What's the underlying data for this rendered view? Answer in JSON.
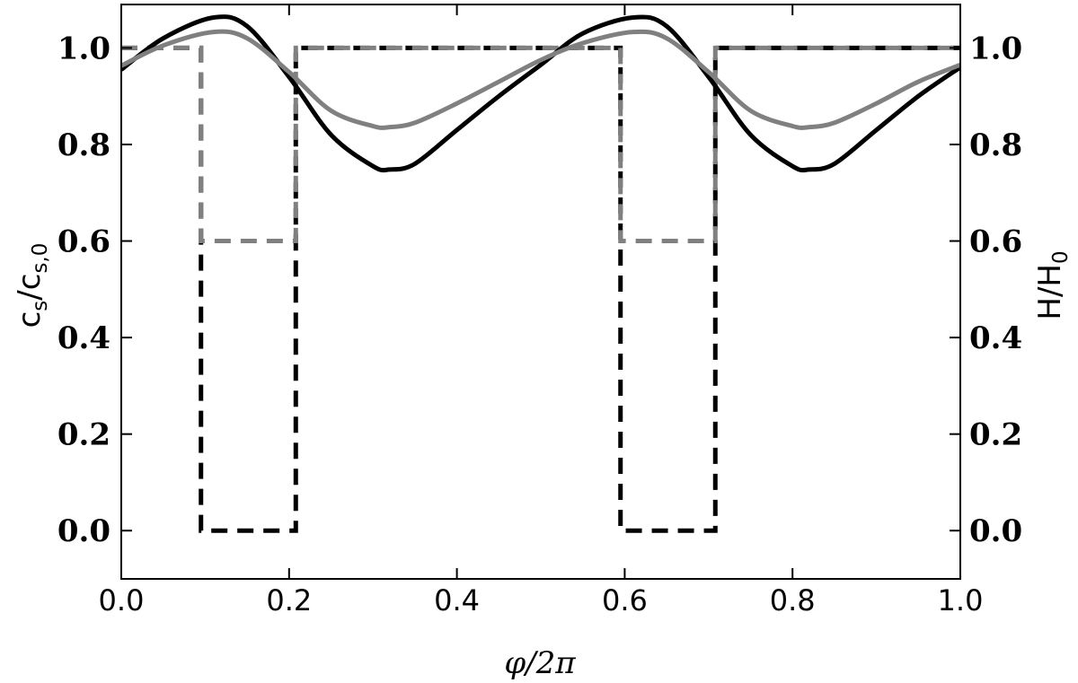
{
  "chart_data": {
    "type": "line",
    "xlabel": "φ/2π",
    "ylabel_left": {
      "base": "c",
      "sub": "s",
      "sep": "/",
      "base2": "c",
      "sub2": "s,0"
    },
    "ylabel_right": {
      "base": "H",
      "sep": "/",
      "base2": "H",
      "sub2": "0"
    },
    "xlim": [
      0.0,
      1.0
    ],
    "ylim": [
      -0.1,
      1.09
    ],
    "x_ticks": [
      0.0,
      0.2,
      0.4,
      0.6,
      0.8,
      1.0
    ],
    "x_tick_labels": [
      "0.0",
      "0.2",
      "0.4",
      "0.6",
      "0.8",
      "1.0"
    ],
    "y_ticks": [
      0.0,
      0.2,
      0.4,
      0.6,
      0.8,
      1.0
    ],
    "y_tick_labels_left": [
      "0.0",
      "0.2",
      "0.4",
      "0.6",
      "0.8",
      "1.0"
    ],
    "y_tick_labels_right": [
      "0.0",
      "0.2",
      "0.4",
      "0.6",
      "0.8",
      "1.0"
    ],
    "grid": false,
    "series": [
      {
        "style": "solid",
        "color": "#000000",
        "axis": "left",
        "x": [
          0.0,
          0.05,
          0.11,
          0.15,
          0.2,
          0.25,
          0.3,
          0.32,
          0.35,
          0.4,
          0.45,
          0.5,
          0.55,
          0.61,
          0.65,
          0.7,
          0.75,
          0.8,
          0.82,
          0.85,
          0.9,
          0.95,
          1.0
        ],
        "y": [
          0.955,
          1.02,
          1.063,
          1.045,
          0.94,
          0.82,
          0.755,
          0.748,
          0.76,
          0.83,
          0.9,
          0.965,
          1.03,
          1.063,
          1.045,
          0.94,
          0.82,
          0.755,
          0.748,
          0.76,
          0.83,
          0.9,
          0.96
        ]
      },
      {
        "style": "solid",
        "color": "#808080",
        "axis": "left",
        "x": [
          0.0,
          0.05,
          0.11,
          0.15,
          0.2,
          0.25,
          0.3,
          0.32,
          0.35,
          0.4,
          0.45,
          0.5,
          0.55,
          0.61,
          0.65,
          0.7,
          0.75,
          0.8,
          0.82,
          0.85,
          0.9,
          0.95,
          1.0
        ],
        "y": [
          0.963,
          1.005,
          1.033,
          1.02,
          0.95,
          0.87,
          0.838,
          0.836,
          0.845,
          0.885,
          0.93,
          0.975,
          1.01,
          1.033,
          1.02,
          0.95,
          0.87,
          0.838,
          0.836,
          0.845,
          0.885,
          0.93,
          0.965
        ]
      },
      {
        "style": "dashed",
        "color": "#000000",
        "axis": "right",
        "x": [
          0.0,
          0.095,
          0.095,
          0.208,
          0.208,
          0.595,
          0.595,
          0.708,
          0.708,
          1.0
        ],
        "y": [
          1.0,
          1.0,
          0.0,
          0.0,
          1.0,
          1.0,
          0.0,
          0.0,
          1.0,
          1.0
        ]
      },
      {
        "style": "dashed",
        "color": "#808080",
        "axis": "right",
        "x": [
          0.0,
          0.095,
          0.095,
          0.208,
          0.208,
          0.595,
          0.595,
          0.708,
          0.708,
          1.0
        ],
        "y": [
          1.0,
          1.0,
          0.6,
          0.6,
          1.0,
          1.0,
          0.6,
          0.6,
          1.0,
          1.0
        ]
      }
    ]
  }
}
